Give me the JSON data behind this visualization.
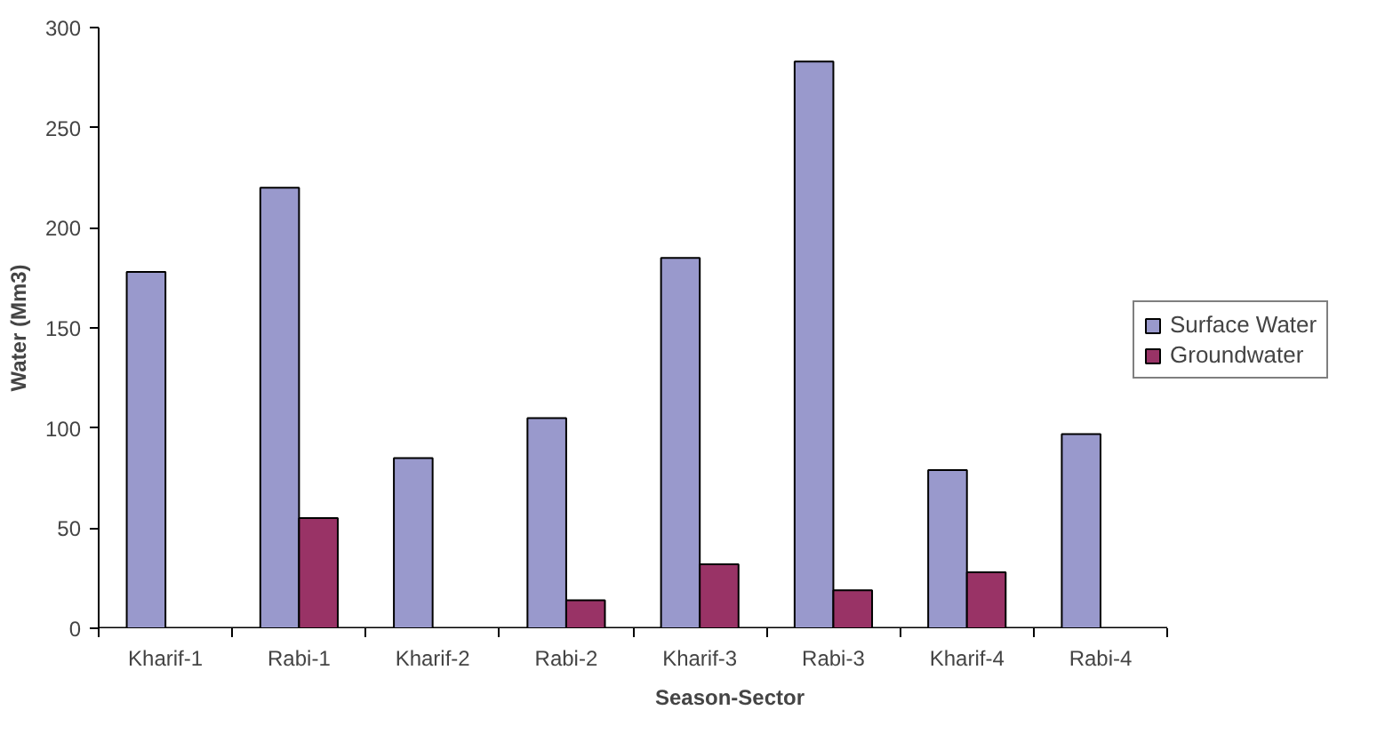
{
  "chart_data": {
    "type": "bar",
    "xlabel": "Season-Sector",
    "ylabel": "Water (Mm3)",
    "categories": [
      "Kharif-1",
      "Rabi-1",
      "Kharif-2",
      "Rabi-2",
      "Kharif-3",
      "Rabi-3",
      "Kharif-4",
      "Rabi-4"
    ],
    "series": [
      {
        "name": "Surface Water",
        "color": "#9999cc",
        "values": [
          178,
          220,
          85,
          105,
          185,
          283,
          79,
          97
        ]
      },
      {
        "name": "Groundwater",
        "color": "#993366",
        "values": [
          null,
          55,
          null,
          14,
          32,
          19,
          28,
          null
        ]
      }
    ],
    "ylim": [
      0,
      300
    ],
    "yticks": [
      0,
      50,
      100,
      150,
      200,
      250,
      300
    ],
    "grid": false,
    "legend": "right"
  }
}
